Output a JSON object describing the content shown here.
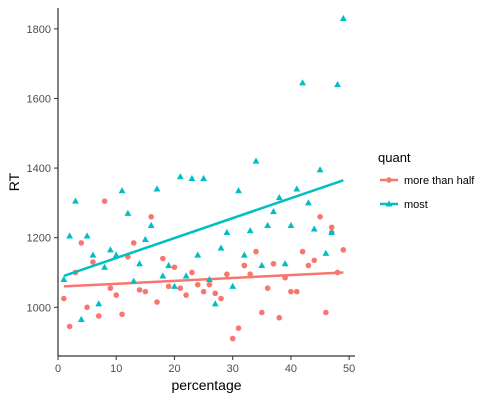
{
  "chart_data": {
    "type": "scatter",
    "xlabel": "percentage",
    "ylabel": "RT",
    "xlim": [
      0,
      51
    ],
    "ylim": [
      860,
      1860
    ],
    "x_ticks": [
      0,
      10,
      20,
      30,
      40,
      50
    ],
    "y_ticks": [
      1000,
      1200,
      1400,
      1600,
      1800
    ],
    "grid": false,
    "legend": {
      "title": "quant",
      "position": "right"
    },
    "series": [
      {
        "name": "more than half",
        "color": "#F8766D",
        "marker": "circle",
        "points": [
          [
            1,
            1025
          ],
          [
            2,
            945
          ],
          [
            3,
            1100
          ],
          [
            4,
            1185
          ],
          [
            5,
            1000
          ],
          [
            6,
            1130
          ],
          [
            7,
            975
          ],
          [
            8,
            1305
          ],
          [
            9,
            1055
          ],
          [
            10,
            1035
          ],
          [
            11,
            980
          ],
          [
            12,
            1145
          ],
          [
            13,
            1185
          ],
          [
            14,
            1050
          ],
          [
            15,
            1045
          ],
          [
            16,
            1260
          ],
          [
            17,
            1015
          ],
          [
            18,
            1140
          ],
          [
            19,
            1060
          ],
          [
            20,
            1115
          ],
          [
            21,
            1055
          ],
          [
            22,
            1035
          ],
          [
            23,
            1100
          ],
          [
            24,
            1065
          ],
          [
            25,
            1045
          ],
          [
            26,
            1065
          ],
          [
            27,
            1040
          ],
          [
            28,
            1025
          ],
          [
            29,
            1095
          ],
          [
            30,
            910
          ],
          [
            31,
            940
          ],
          [
            32,
            1120
          ],
          [
            33,
            1095
          ],
          [
            34,
            1160
          ],
          [
            35,
            985
          ],
          [
            36,
            1055
          ],
          [
            37,
            1125
          ],
          [
            38,
            970
          ],
          [
            39,
            1085
          ],
          [
            40,
            1045
          ],
          [
            41,
            1045
          ],
          [
            42,
            1160
          ],
          [
            43,
            1120
          ],
          [
            44,
            1135
          ],
          [
            45,
            1260
          ],
          [
            46,
            985
          ],
          [
            47,
            1230
          ],
          [
            48,
            1100
          ],
          [
            49,
            1165
          ],
          [
            47,
            1215
          ],
          [
            32,
            1120
          ]
        ],
        "trend": {
          "x": [
            1,
            49
          ],
          "y": [
            1060,
            1100
          ]
        }
      },
      {
        "name": "most",
        "color": "#00BFC4",
        "marker": "triangle",
        "points": [
          [
            1,
            1080
          ],
          [
            2,
            1205
          ],
          [
            3,
            1305
          ],
          [
            4,
            965
          ],
          [
            5,
            1205
          ],
          [
            6,
            1150
          ],
          [
            7,
            1010
          ],
          [
            8,
            1115
          ],
          [
            9,
            1165
          ],
          [
            10,
            1150
          ],
          [
            11,
            1335
          ],
          [
            12,
            1270
          ],
          [
            13,
            1075
          ],
          [
            14,
            1125
          ],
          [
            15,
            1195
          ],
          [
            16,
            1235
          ],
          [
            17,
            1340
          ],
          [
            18,
            1090
          ],
          [
            19,
            1120
          ],
          [
            20,
            1060
          ],
          [
            21,
            1375
          ],
          [
            22,
            1090
          ],
          [
            23,
            1370
          ],
          [
            24,
            1150
          ],
          [
            25,
            1370
          ],
          [
            26,
            1080
          ],
          [
            27,
            1010
          ],
          [
            28,
            1170
          ],
          [
            29,
            1215
          ],
          [
            30,
            1060
          ],
          [
            31,
            1335
          ],
          [
            32,
            1150
          ],
          [
            33,
            1220
          ],
          [
            34,
            1420
          ],
          [
            35,
            1120
          ],
          [
            36,
            1235
          ],
          [
            37,
            1275
          ],
          [
            38,
            1315
          ],
          [
            39,
            1125
          ],
          [
            40,
            1235
          ],
          [
            41,
            1340
          ],
          [
            42,
            1645
          ],
          [
            43,
            1300
          ],
          [
            44,
            1225
          ],
          [
            45,
            1395
          ],
          [
            46,
            1155
          ],
          [
            47,
            1215
          ],
          [
            48,
            1640
          ],
          [
            49,
            1830
          ]
        ],
        "trend": {
          "x": [
            1,
            49
          ],
          "y": [
            1090,
            1365
          ]
        }
      }
    ]
  }
}
